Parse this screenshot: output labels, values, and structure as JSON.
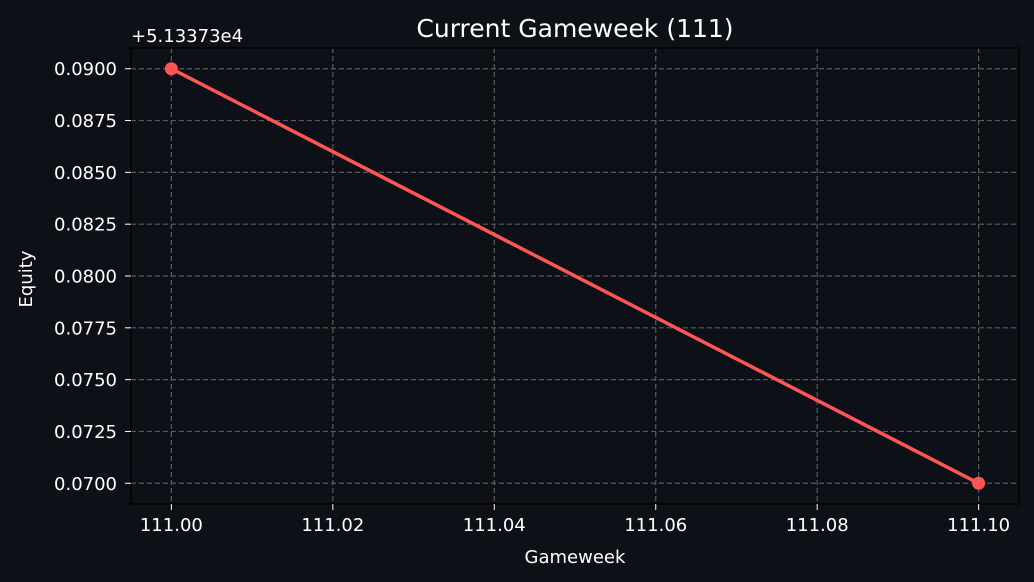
{
  "chart_data": {
    "type": "line",
    "title": "Current Gameweek (111)",
    "xlabel": "Gameweek",
    "ylabel": "Equity",
    "offset_label": "+5.13373e4",
    "x_ticks": [
      "111.00",
      "111.02",
      "111.04",
      "111.06",
      "111.08",
      "111.10"
    ],
    "y_ticks": [
      "0.0900",
      "0.0875",
      "0.0850",
      "0.0825",
      "0.0800",
      "0.0775",
      "0.0750",
      "0.0725",
      "0.0700"
    ],
    "xlim": [
      110.995,
      111.105
    ],
    "ylim": [
      0.069,
      0.091
    ],
    "grid": true,
    "series": [
      {
        "x": [
          111.0,
          111.1
        ],
        "y": [
          0.09,
          0.07
        ],
        "color": "#ff5555"
      }
    ]
  },
  "colors": {
    "background": "#0d1117",
    "text": "#ffffff",
    "grid": "#5a5a5a",
    "axes": "#000000"
  }
}
